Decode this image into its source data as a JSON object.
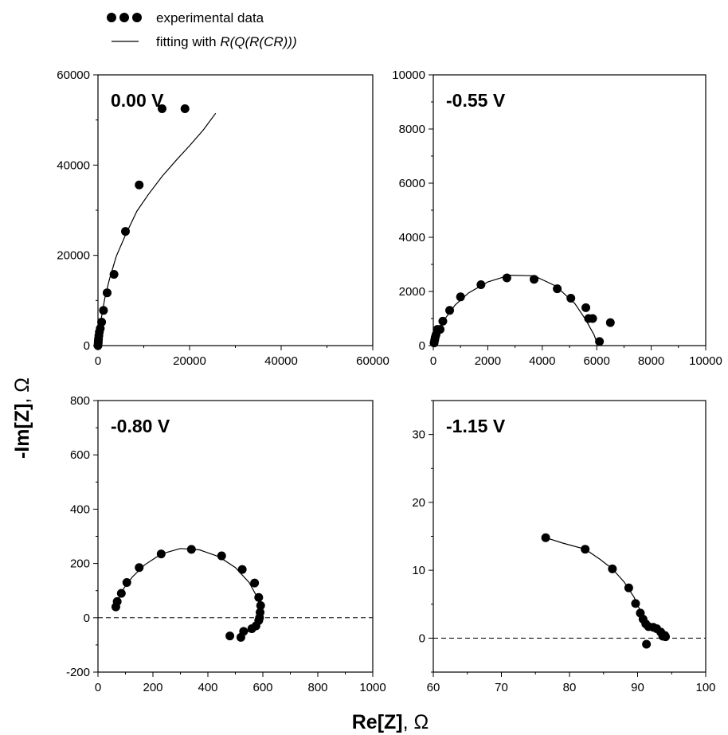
{
  "legend": {
    "experimental_label": "experimental data",
    "fitting_label": "fitting with ",
    "fitting_model": "R(Q(R(CR)))"
  },
  "axis_titles": {
    "x_main": "Re[Z]",
    "y_main": "-Im[Z]",
    "unit": ", Ω"
  },
  "colors": {
    "marker": "#000000",
    "line": "#000000",
    "background": "#ffffff"
  },
  "chart_data": [
    {
      "type": "scatter",
      "title": "0.00 V",
      "xlim": [
        0,
        60000
      ],
      "ylim": [
        0,
        60000
      ],
      "xticks": [
        0,
        20000,
        40000,
        60000
      ],
      "yticks": [
        0,
        20000,
        40000,
        60000
      ],
      "show_x_tick_labels": true,
      "zero_line": false,
      "series": [
        {
          "name": "experimental data",
          "kind": "points",
          "x": [
            0,
            50,
            80,
            120,
            200,
            300,
            500,
            800,
            1200,
            2000,
            3500,
            6000,
            9000,
            14000,
            19000
          ],
          "y": [
            0,
            500,
            1000,
            1500,
            2200,
            3000,
            3800,
            5200,
            7800,
            11700,
            15800,
            25300,
            35600,
            52500,
            52500
          ]
        },
        {
          "name": "fitting with R(Q(R(CR)))",
          "kind": "line",
          "x": [
            0,
            300,
            800,
            1500,
            2500,
            4000,
            6000,
            8500,
            11000,
            14000,
            17000,
            20000,
            23000,
            25700
          ],
          "y": [
            0,
            3000,
            6500,
            10500,
            14700,
            19800,
            24500,
            29800,
            33500,
            37500,
            41000,
            44300,
            47800,
            51500
          ]
        }
      ]
    },
    {
      "type": "scatter",
      "title": "-0.55 V",
      "xlim": [
        0,
        10000
      ],
      "ylim": [
        0,
        10000
      ],
      "xticks": [
        0,
        2000,
        4000,
        6000,
        8000,
        10000
      ],
      "yticks": [
        0,
        2000,
        4000,
        6000,
        8000,
        10000
      ],
      "show_x_tick_labels": true,
      "zero_line": false,
      "series": [
        {
          "name": "experimental data",
          "kind": "points",
          "x": [
            30,
            50,
            70,
            100,
            150,
            250,
            350,
            600,
            1000,
            1750,
            2700,
            3700,
            4550,
            5050,
            5600,
            5700,
            5850,
            6100,
            6500
          ],
          "y": [
            100,
            200,
            300,
            400,
            600,
            600,
            900,
            1300,
            1800,
            2250,
            2500,
            2450,
            2100,
            1750,
            1400,
            1000,
            1000,
            150,
            850
          ]
        },
        {
          "name": "fitting with R(Q(R(CR)))",
          "kind": "line",
          "x": [
            0,
            150,
            400,
            800,
            1300,
            2000,
            2800,
            3700,
            4500,
            5200,
            5600,
            5900,
            6050
          ],
          "y": [
            0,
            400,
            950,
            1500,
            1950,
            2350,
            2600,
            2580,
            2200,
            1550,
            950,
            400,
            0
          ]
        }
      ]
    },
    {
      "type": "scatter",
      "title": "-0.80 V",
      "xlim": [
        0,
        1000
      ],
      "ylim": [
        -200,
        800
      ],
      "xticks": [
        0,
        200,
        400,
        600,
        800,
        1000
      ],
      "yticks": [
        -200,
        0,
        200,
        400,
        600,
        800
      ],
      "show_x_tick_labels": true,
      "zero_line": true,
      "series": [
        {
          "name": "experimental data",
          "kind": "points",
          "x": [
            65,
            70,
            85,
            105,
            150,
            230,
            340,
            450,
            525,
            570,
            585,
            592,
            590,
            588,
            585,
            575,
            560,
            530,
            520,
            480
          ],
          "y": [
            40,
            60,
            90,
            130,
            185,
            235,
            252,
            228,
            178,
            128,
            75,
            45,
            20,
            0,
            -10,
            -30,
            -40,
            -50,
            -72,
            -67
          ]
        },
        {
          "name": "fitting with R(Q(R(CR)))",
          "kind": "line",
          "x": [
            65,
            75,
            95,
            125,
            170,
            230,
            300,
            370,
            440,
            500,
            550,
            580,
            592,
            590,
            580,
            560,
            540,
            525,
            515
          ],
          "y": [
            35,
            70,
            110,
            150,
            195,
            235,
            255,
            250,
            225,
            185,
            130,
            75,
            30,
            0,
            -25,
            -42,
            -55,
            -65,
            -70
          ]
        }
      ]
    },
    {
      "type": "scatter",
      "title": "-1.15 V",
      "xlim": [
        60,
        100
      ],
      "ylim": [
        -5,
        35
      ],
      "xticks": [
        60,
        70,
        80,
        90,
        100
      ],
      "yticks": [
        0,
        10,
        20,
        30
      ],
      "show_x_tick_labels": true,
      "zero_line": true,
      "series": [
        {
          "name": "experimental data",
          "kind": "points",
          "x": [
            76.5,
            82.3,
            86.3,
            88.7,
            89.7,
            90.4,
            90.8,
            91.2,
            91.6,
            92.3,
            92.8,
            93.4,
            93.7,
            94.0,
            94.1,
            91.3
          ],
          "y": [
            14.8,
            13.1,
            10.2,
            7.4,
            5.1,
            3.7,
            2.8,
            2.1,
            1.7,
            1.6,
            1.4,
            0.9,
            0.3,
            0.4,
            0.2,
            -0.9
          ]
        },
        {
          "name": "fitting with R(Q(R(CR)))",
          "kind": "line",
          "x": [
            76.5,
            79,
            82.3,
            84.5,
            86.3,
            88,
            89.5,
            90.6,
            91.6,
            92.6,
            93.4,
            94.1
          ],
          "y": [
            14.8,
            14.0,
            13.1,
            11.6,
            10.2,
            8.3,
            6.0,
            3.6,
            2.1,
            1.2,
            0.6,
            0.2
          ]
        }
      ]
    }
  ]
}
